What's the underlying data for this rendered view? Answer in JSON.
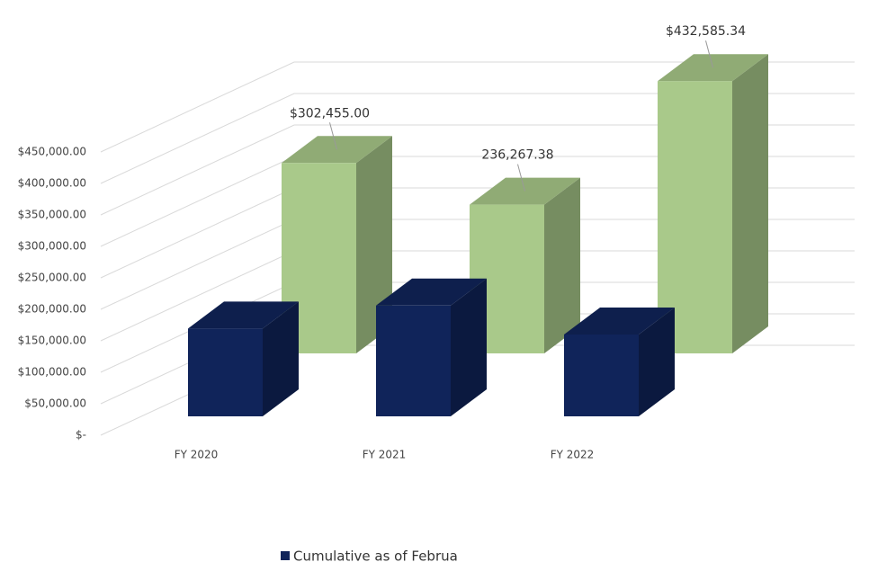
{
  "chart_data": {
    "type": "bar3d",
    "categories": [
      "FY 2020",
      "FY 2021",
      "FY 2022"
    ],
    "series": [
      {
        "name": "Cumulative as of Februa",
        "color": "#10245a",
        "values": [
          139500,
          176000,
          130000
        ]
      },
      {
        "color": "#a9c98a",
        "values": [
          302455.0,
          236267.38,
          432585.34
        ],
        "value_labels": [
          "$302,455.00",
          "236,267.38",
          "$432,585.34"
        ]
      }
    ],
    "ylim": [
      0,
      450000
    ],
    "yticks": [
      {
        "value": 0,
        "label": "$-"
      },
      {
        "value": 50000,
        "label": "$50,000.00"
      },
      {
        "value": 100000,
        "label": "$100,000.00"
      },
      {
        "value": 150000,
        "label": "$150,000.00"
      },
      {
        "value": 200000,
        "label": "$200,000.00"
      },
      {
        "value": 250000,
        "label": "$250,000.00"
      },
      {
        "value": 300000,
        "label": "$300,000.00"
      },
      {
        "value": 350000,
        "label": "$350,000.00"
      },
      {
        "value": 400000,
        "label": "$400,000.00"
      },
      {
        "value": 450000,
        "label": "$450,000.00"
      }
    ],
    "grid": true,
    "legend": "bottom"
  }
}
